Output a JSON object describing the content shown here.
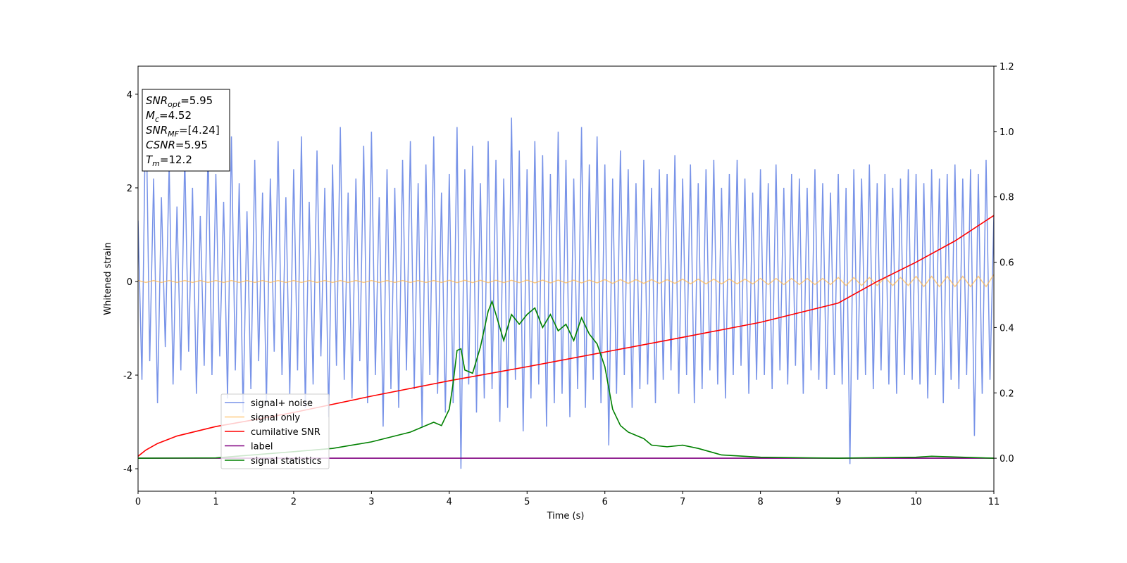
{
  "chart_data": {
    "type": "line",
    "xlabel": "Time (s)",
    "ylabel": "Whitened strain",
    "xlim": [
      0,
      11
    ],
    "xticks": [
      0,
      1,
      2,
      3,
      4,
      5,
      6,
      7,
      8,
      9,
      10,
      11
    ],
    "ylim": [
      -4.48,
      4.6
    ],
    "yticks": [
      -4,
      -2,
      0,
      2,
      4
    ],
    "y2lim": [
      -0.101,
      1.2
    ],
    "y2ticks": [
      {
        "value": 0,
        "label": "0.0"
      },
      0.2,
      0.4,
      0.6,
      0.8,
      {
        "value": 1,
        "label": "1.0"
      },
      1.2
    ],
    "legend": "lower left",
    "annotation": [
      {
        "main": "SNR",
        "sub": "opt",
        "rest": "=5.95"
      },
      {
        "main": "M",
        "sub": "c",
        "rest": "=4.52"
      },
      {
        "main": "SNR",
        "sub": "MF",
        "rest": "=[4.24]"
      },
      {
        "main": "CSNR",
        "sub": "",
        "rest": "=5.95"
      },
      {
        "main": "T",
        "sub": "m",
        "rest": "=12.2"
      }
    ],
    "series": [
      {
        "name": "signal+ noise",
        "color": "#7893e8",
        "axis": "y",
        "x": [
          0,
          0.05,
          0.1,
          0.15,
          0.2,
          0.25,
          0.3,
          0.35,
          0.4,
          0.45,
          0.5,
          0.55,
          0.6,
          0.65,
          0.7,
          0.75,
          0.8,
          0.85,
          0.9,
          0.95,
          1,
          1.05,
          1.1,
          1.15,
          1.2,
          1.25,
          1.3,
          1.35,
          1.4,
          1.45,
          1.5,
          1.55,
          1.6,
          1.65,
          1.7,
          1.75,
          1.8,
          1.85,
          1.9,
          1.95,
          2,
          2.05,
          2.1,
          2.15,
          2.2,
          2.25,
          2.3,
          2.35,
          2.4,
          2.45,
          2.5,
          2.55,
          2.6,
          2.65,
          2.7,
          2.75,
          2.8,
          2.85,
          2.9,
          2.95,
          3,
          3.05,
          3.1,
          3.15,
          3.2,
          3.25,
          3.3,
          3.35,
          3.4,
          3.45,
          3.5,
          3.55,
          3.6,
          3.65,
          3.7,
          3.75,
          3.8,
          3.85,
          3.9,
          3.95,
          4,
          4.05,
          4.1,
          4.15,
          4.2,
          4.25,
          4.3,
          4.35,
          4.4,
          4.45,
          4.5,
          4.55,
          4.6,
          4.65,
          4.7,
          4.75,
          4.8,
          4.85,
          4.9,
          4.95,
          5,
          5.05,
          5.1,
          5.15,
          5.2,
          5.25,
          5.3,
          5.35,
          5.4,
          5.45,
          5.5,
          5.55,
          5.6,
          5.65,
          5.7,
          5.75,
          5.8,
          5.85,
          5.9,
          5.95,
          6,
          6.05,
          6.1,
          6.15,
          6.2,
          6.25,
          6.3,
          6.35,
          6.4,
          6.45,
          6.5,
          6.55,
          6.6,
          6.65,
          6.7,
          6.75,
          6.8,
          6.85,
          6.9,
          6.95,
          7,
          7.05,
          7.1,
          7.15,
          7.2,
          7.25,
          7.3,
          7.35,
          7.4,
          7.45,
          7.5,
          7.55,
          7.6,
          7.65,
          7.7,
          7.75,
          7.8,
          7.85,
          7.9,
          7.95,
          8,
          8.05,
          8.1,
          8.15,
          8.2,
          8.25,
          8.3,
          8.35,
          8.4,
          8.45,
          8.5,
          8.55,
          8.6,
          8.65,
          8.7,
          8.75,
          8.8,
          8.85,
          8.9,
          8.95,
          9,
          9.05,
          9.1,
          9.15,
          9.2,
          9.25,
          9.3,
          9.35,
          9.4,
          9.45,
          9.5,
          9.55,
          9.6,
          9.65,
          9.7,
          9.75,
          9.8,
          9.85,
          9.9,
          9.95,
          10,
          10.05,
          10.1,
          10.15,
          10.2,
          10.25,
          10.3,
          10.35,
          10.4,
          10.45,
          10.5,
          10.55,
          10.6,
          10.65,
          10.7,
          10.75,
          10.8,
          10.85,
          10.9,
          10.95,
          11
        ],
        "values": [
          1.3,
          -2.1,
          4.1,
          -1.7,
          2.2,
          -2.6,
          1.8,
          -1.4,
          2.5,
          -2.2,
          1.6,
          -1.9,
          2.7,
          -1.5,
          2.0,
          -2.4,
          1.4,
          -1.8,
          2.9,
          -2.0,
          2.3,
          -1.6,
          1.7,
          -2.5,
          3.1,
          -1.9,
          2.1,
          -2.8,
          1.5,
          -2.3,
          2.6,
          -1.7,
          1.9,
          -2.6,
          2.2,
          -1.5,
          3.0,
          -2.0,
          1.8,
          -2.4,
          2.4,
          -1.9,
          3.1,
          -2.7,
          1.7,
          -2.2,
          2.8,
          -1.6,
          2.0,
          -2.9,
          2.5,
          -1.8,
          3.3,
          -2.1,
          1.9,
          -2.5,
          2.2,
          -1.7,
          2.9,
          -2.6,
          3.2,
          -2.0,
          1.8,
          -3.1,
          2.4,
          -2.3,
          2.0,
          -2.7,
          2.6,
          -1.9,
          3.0,
          -2.3,
          2.1,
          -3.1,
          2.5,
          -2.0,
          3.1,
          -2.4,
          1.9,
          -2.8,
          2.3,
          -2.6,
          3.3,
          -4.0,
          2.4,
          -2.2,
          2.9,
          -2.8,
          2.1,
          -2.5,
          3.0,
          -2.3,
          2.6,
          -3.0,
          2.2,
          -2.7,
          3.5,
          -2.1,
          2.8,
          -3.2,
          2.4,
          -2.5,
          3.0,
          -2.2,
          2.7,
          -3.1,
          2.3,
          -2.6,
          3.2,
          -2.4,
          2.6,
          -2.9,
          2.2,
          -2.3,
          3.3,
          -2.7,
          2.5,
          -2.1,
          3.1,
          -2.6,
          2.5,
          -3.5,
          2.2,
          -2.4,
          2.8,
          -2.0,
          2.4,
          -2.7,
          2.1,
          -2.3,
          2.6,
          -2.2,
          2.0,
          -2.6,
          2.4,
          -2.1,
          2.3,
          -1.9,
          2.7,
          -2.4,
          2.2,
          -2.0,
          2.5,
          -2.6,
          2.1,
          -2.3,
          2.4,
          -1.9,
          2.6,
          -2.2,
          2.0,
          -2.5,
          2.3,
          -2.0,
          2.6,
          -1.8,
          2.2,
          -2.4,
          1.9,
          -2.1,
          2.4,
          -2.0,
          2.1,
          -2.3,
          2.5,
          -1.9,
          2.0,
          -2.2,
          2.3,
          -1.8,
          2.2,
          -2.4,
          2.0,
          -1.9,
          2.4,
          -2.1,
          2.1,
          -2.3,
          1.9,
          -2.0,
          2.3,
          -2.2,
          2.0,
          -3.9,
          2.4,
          -2.1,
          2.2,
          -2.0,
          2.5,
          -2.3,
          2.1,
          -1.9,
          2.3,
          -2.2,
          2.0,
          -2.4,
          2.2,
          -2.0,
          2.4,
          -2.1,
          2.3,
          -2.2,
          2.1,
          -2.5,
          2.4,
          -2.0,
          2.2,
          -2.6,
          2.3,
          -2.1,
          2.5,
          -2.3,
          2.2,
          -2.0,
          2.4,
          -3.3,
          2.3,
          -2.4,
          2.6,
          -2.1,
          1.4
        ]
      },
      {
        "name": "signal only",
        "color": "#ffb74d",
        "axis": "y",
        "x": [
          0,
          0.1,
          0.2,
          0.3,
          0.4,
          0.5,
          0.6,
          0.7,
          0.8,
          0.9,
          1,
          1.1,
          1.2,
          1.3,
          1.4,
          1.5,
          1.6,
          1.7,
          1.8,
          1.9,
          2,
          2.1,
          2.2,
          2.3,
          2.4,
          2.5,
          2.6,
          2.7,
          2.8,
          2.9,
          3,
          3.1,
          3.2,
          3.3,
          3.4,
          3.5,
          3.6,
          3.7,
          3.8,
          3.9,
          4,
          4.1,
          4.2,
          4.3,
          4.4,
          4.5,
          4.6,
          4.7,
          4.8,
          4.9,
          5,
          5.1,
          5.2,
          5.3,
          5.4,
          5.5,
          5.6,
          5.7,
          5.8,
          5.9,
          6,
          6.1,
          6.2,
          6.3,
          6.4,
          6.5,
          6.6,
          6.7,
          6.8,
          6.9,
          7,
          7.1,
          7.2,
          7.3,
          7.4,
          7.5,
          7.6,
          7.7,
          7.8,
          7.9,
          8,
          8.1,
          8.2,
          8.3,
          8.4,
          8.5,
          8.6,
          8.7,
          8.8,
          8.9,
          9,
          9.1,
          9.2,
          9.3,
          9.4,
          9.5,
          9.6,
          9.7,
          9.8,
          9.9,
          10,
          10.1,
          10.2,
          10.3,
          10.4,
          10.5,
          10.6,
          10.7,
          10.8,
          10.9,
          11
        ],
        "values": [
          0.02,
          -0.02,
          0.02,
          -0.02,
          0.02,
          -0.02,
          0.02,
          -0.02,
          0.02,
          -0.02,
          0.02,
          -0.02,
          0.02,
          -0.02,
          0.02,
          -0.02,
          0.02,
          -0.02,
          0.02,
          -0.02,
          0.02,
          -0.02,
          0.02,
          -0.02,
          0.02,
          -0.02,
          0.02,
          -0.02,
          0.02,
          -0.02,
          0.02,
          -0.02,
          0.02,
          -0.02,
          0.02,
          -0.02,
          0.02,
          -0.02,
          0.02,
          -0.02,
          0.025,
          -0.025,
          0.025,
          -0.025,
          0.025,
          -0.025,
          0.025,
          -0.025,
          0.025,
          -0.025,
          0.03,
          -0.03,
          0.03,
          -0.03,
          0.03,
          -0.03,
          0.03,
          -0.03,
          0.03,
          -0.03,
          0.04,
          -0.04,
          0.04,
          -0.04,
          0.04,
          -0.04,
          0.04,
          -0.04,
          0.04,
          -0.04,
          0.05,
          -0.05,
          0.05,
          -0.05,
          0.05,
          -0.05,
          0.05,
          -0.05,
          0.05,
          -0.05,
          0.065,
          -0.065,
          0.065,
          -0.065,
          0.065,
          -0.065,
          0.065,
          -0.065,
          0.065,
          -0.065,
          0.085,
          -0.085,
          0.085,
          -0.085,
          0.085,
          -0.085,
          0.085,
          -0.085,
          0.085,
          -0.085,
          0.11,
          -0.11,
          0.11,
          -0.11,
          0.11,
          -0.11,
          0.11,
          -0.11,
          0.11,
          -0.11,
          0.15
        ]
      },
      {
        "name": "cumilative SNR",
        "color": "#ff0000",
        "axis": "y2",
        "x": [
          0,
          0.1,
          0.25,
          0.5,
          1,
          1.5,
          2,
          3,
          4,
          5,
          6,
          7,
          8,
          9,
          9.5,
          10,
          10.5,
          11
        ],
        "values": [
          0.006,
          0.025,
          0.045,
          0.068,
          0.097,
          0.118,
          0.14,
          0.19,
          0.237,
          0.28,
          0.325,
          0.37,
          0.416,
          0.475,
          0.541,
          0.6,
          0.665,
          0.743
        ]
      },
      {
        "name": "label",
        "color": "#800080",
        "axis": "y2",
        "x": [
          0,
          11
        ],
        "values": [
          0,
          0
        ]
      },
      {
        "name": "signal statistics",
        "color": "#008000",
        "axis": "y2",
        "x": [
          0,
          1,
          2,
          2.5,
          3,
          3.5,
          3.8,
          3.9,
          4,
          4.05,
          4.1,
          4.15,
          4.2,
          4.3,
          4.4,
          4.5,
          4.55,
          4.7,
          4.8,
          4.9,
          5,
          5.1,
          5.2,
          5.3,
          5.4,
          5.5,
          5.6,
          5.7,
          5.8,
          5.9,
          6,
          6.1,
          6.2,
          6.3,
          6.4,
          6.5,
          6.6,
          6.8,
          7,
          7.2,
          7.5,
          8,
          9,
          10,
          10.2,
          11
        ],
        "values": [
          0,
          0.001,
          0.02,
          0.03,
          0.05,
          0.08,
          0.11,
          0.1,
          0.15,
          0.23,
          0.33,
          0.335,
          0.27,
          0.26,
          0.34,
          0.45,
          0.48,
          0.36,
          0.44,
          0.41,
          0.44,
          0.46,
          0.4,
          0.44,
          0.39,
          0.41,
          0.36,
          0.43,
          0.38,
          0.35,
          0.28,
          0.15,
          0.1,
          0.08,
          0.07,
          0.06,
          0.04,
          0.035,
          0.04,
          0.03,
          0.01,
          0.003,
          0,
          0.003,
          0.006,
          0
        ]
      }
    ]
  }
}
